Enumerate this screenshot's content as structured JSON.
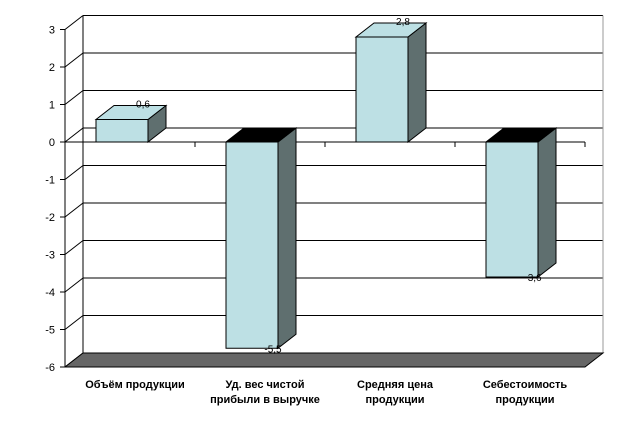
{
  "chart_data": {
    "type": "bar",
    "categories": [
      [
        "Объём продукции"
      ],
      [
        "Уд. вес чистой",
        "прибыли в выручке"
      ],
      [
        "Средняя цена",
        "продукции"
      ],
      [
        "Себестоимость",
        "продукции"
      ]
    ],
    "values": [
      0.6,
      -5.5,
      2.8,
      -3.6
    ],
    "data_labels": [
      "0,6",
      "-5,5",
      "2,8",
      "-3,6"
    ],
    "ylim": [
      -6,
      3
    ],
    "yticks": [
      3,
      2,
      1,
      0,
      -1,
      -2,
      -3,
      -4,
      -5,
      -6
    ],
    "grid": true,
    "style": "3d-column",
    "colors": {
      "bar_front": "#bde0e4",
      "bar_side": "#5f6f6f",
      "bar_top": "#bde0e4",
      "bar_top_dark": "#000000",
      "floor": "#666666",
      "grid": "#000000"
    }
  }
}
